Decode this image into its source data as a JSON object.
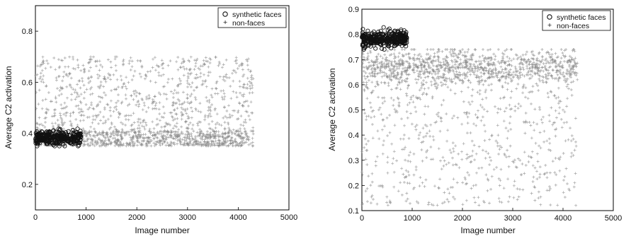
{
  "chart_data": [
    {
      "type": "scatter",
      "xlabel": "Image number",
      "ylabel": "Average C2 activation",
      "xlim": [
        0,
        5000
      ],
      "ylim": [
        0.1,
        0.9
      ],
      "xticks": [
        "0",
        "1000",
        "2000",
        "3000",
        "4000",
        "5000"
      ],
      "yticks": [
        "0.2",
        "0.4",
        "0.6",
        "0.8"
      ],
      "grid": false,
      "legend_position": "top-right",
      "series": [
        {
          "name": "synthetic faces",
          "marker": "circle",
          "color": "#111111",
          "x_range": [
            1,
            900
          ],
          "y_center": 0.38,
          "y_spread": [
            0.35,
            0.44
          ]
        },
        {
          "name": "non-faces",
          "marker": "plus",
          "color": "#888888",
          "x_range": [
            1,
            4300
          ],
          "y_band": [
            0.34,
            0.7
          ],
          "y_center": 0.46
        }
      ]
    },
    {
      "type": "scatter",
      "xlabel": "Image number",
      "ylabel": "Average C2 activation",
      "xlim": [
        0,
        5000
      ],
      "ylim": [
        0.1,
        0.9
      ],
      "xticks": [
        "0",
        "1000",
        "2000",
        "3000",
        "4000",
        "5000"
      ],
      "yticks": [
        "0.1",
        "0.2",
        "0.3",
        "0.4",
        "0.5",
        "0.6",
        "0.7",
        "0.8",
        "0.9"
      ],
      "grid": false,
      "legend_position": "top-right",
      "series": [
        {
          "name": "synthetic faces",
          "marker": "circle",
          "color": "#111111",
          "x_range": [
            1,
            900
          ],
          "y_center": 0.78,
          "y_spread": [
            0.74,
            0.84
          ]
        },
        {
          "name": "non-faces",
          "marker": "plus",
          "color": "#888888",
          "x_range": [
            1,
            4300
          ],
          "y_band": [
            0.12,
            0.74
          ],
          "y_center": 0.67
        }
      ]
    }
  ]
}
